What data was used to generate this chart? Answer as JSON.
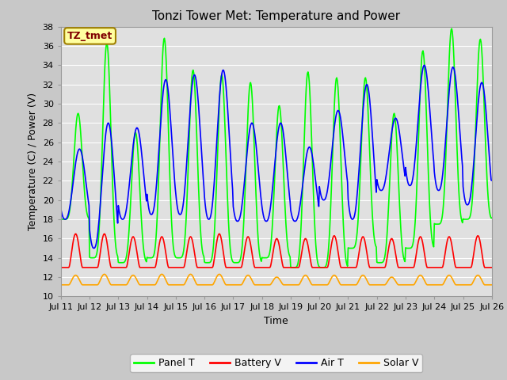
{
  "title": "Tonzi Tower Met: Temperature and Power",
  "xlabel": "Time",
  "ylabel": "Temperature (C) / Power (V)",
  "ylim": [
    10,
    38
  ],
  "yticks": [
    10,
    12,
    14,
    16,
    18,
    20,
    22,
    24,
    26,
    28,
    30,
    32,
    34,
    36,
    38
  ],
  "xtick_labels": [
    "Jul 11",
    "Jul 12",
    "Jul 13",
    "Jul 14",
    "Jul 15",
    "Jul 16",
    "Jul 17",
    "Jul 18",
    "Jul 19",
    "Jul 20",
    "Jul 21",
    "Jul 22",
    "Jul 23",
    "Jul 24",
    "Jul 25",
    "Jul 26"
  ],
  "panel_t_color": "#00FF00",
  "battery_v_color": "#FF0000",
  "air_t_color": "#0000FF",
  "solar_v_color": "#FFA500",
  "fig_bg_color": "#C8C8C8",
  "plot_bg_color": "#E0E0E0",
  "grid_color": "#FFFFFF",
  "legend_label_color": "#800000",
  "annotation_text": "TZ_tmet",
  "annotation_bg": "#FFFFA0",
  "annotation_border": "#A08000",
  "title_fontsize": 11,
  "axis_fontsize": 9,
  "tick_fontsize": 8,
  "legend_fontsize": 9,
  "line_width": 1.2
}
